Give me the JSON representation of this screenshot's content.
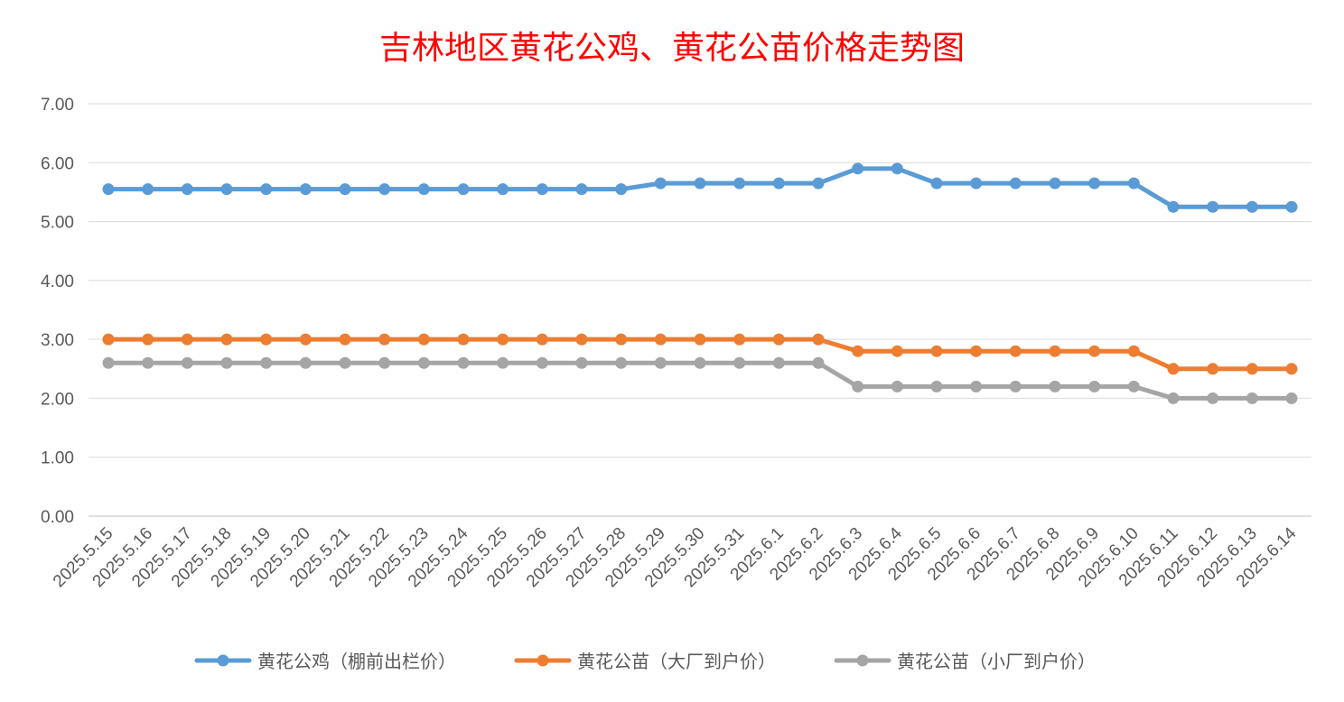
{
  "chart_data": {
    "type": "line",
    "title": "吉林地区黄花公鸡、黄花公苗价格走势图",
    "xlabel": "",
    "ylabel": "",
    "ylim": [
      0,
      7
    ],
    "y_ticks": [
      "0.00",
      "1.00",
      "2.00",
      "3.00",
      "4.00",
      "5.00",
      "6.00",
      "7.00"
    ],
    "grid": true,
    "legend_position": "bottom",
    "categories": [
      "2025.5.15",
      "2025.5.16",
      "2025.5.17",
      "2025.5.18",
      "2025.5.19",
      "2025.5.20",
      "2025.5.21",
      "2025.5.22",
      "2025.5.23",
      "2025.5.24",
      "2025.5.25",
      "2025.5.26",
      "2025.5.27",
      "2025.5.28",
      "2025.5.29",
      "2025.5.30",
      "2025.5.31",
      "2025.6.1",
      "2025.6.2",
      "2025.6.3",
      "2025.6.4",
      "2025.6.5",
      "2025.6.6",
      "2025.6.7",
      "2025.6.8",
      "2025.6.9",
      "2025.6.10",
      "2025.6.11",
      "2025.6.12",
      "2025.6.13",
      "2025.6.14"
    ],
    "series": [
      {
        "name": "黄花公鸡（棚前出栏价）",
        "color": "#5b9bd5",
        "values": [
          5.55,
          5.55,
          5.55,
          5.55,
          5.55,
          5.55,
          5.55,
          5.55,
          5.55,
          5.55,
          5.55,
          5.55,
          5.55,
          5.55,
          5.65,
          5.65,
          5.65,
          5.65,
          5.65,
          5.9,
          5.9,
          5.65,
          5.65,
          5.65,
          5.65,
          5.65,
          5.65,
          5.25,
          5.25,
          5.25,
          5.25
        ]
      },
      {
        "name": "黄花公苗（大厂到户价）",
        "color": "#ed7d31",
        "values": [
          3.0,
          3.0,
          3.0,
          3.0,
          3.0,
          3.0,
          3.0,
          3.0,
          3.0,
          3.0,
          3.0,
          3.0,
          3.0,
          3.0,
          3.0,
          3.0,
          3.0,
          3.0,
          3.0,
          2.8,
          2.8,
          2.8,
          2.8,
          2.8,
          2.8,
          2.8,
          2.8,
          2.5,
          2.5,
          2.5,
          2.5
        ]
      },
      {
        "name": "黄花公苗（小厂到户价）",
        "color": "#a5a5a5",
        "values": [
          2.6,
          2.6,
          2.6,
          2.6,
          2.6,
          2.6,
          2.6,
          2.6,
          2.6,
          2.6,
          2.6,
          2.6,
          2.6,
          2.6,
          2.6,
          2.6,
          2.6,
          2.6,
          2.6,
          2.2,
          2.2,
          2.2,
          2.2,
          2.2,
          2.2,
          2.2,
          2.2,
          2.0,
          2.0,
          2.0,
          2.0
        ]
      }
    ]
  }
}
